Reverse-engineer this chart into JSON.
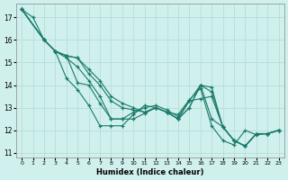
{
  "xlabel": "Humidex (Indice chaleur)",
  "bg_color": "#cff0ec",
  "grid_color": "#b8ddd8",
  "line_color": "#1a7a6a",
  "xlim": [
    -0.5,
    23.5
  ],
  "ylim": [
    10.8,
    17.6
  ],
  "yticks": [
    11,
    12,
    13,
    14,
    15,
    16,
    17
  ],
  "xticks": [
    0,
    1,
    2,
    3,
    4,
    5,
    6,
    7,
    8,
    9,
    10,
    11,
    12,
    13,
    14,
    15,
    16,
    17,
    18,
    19,
    20,
    21,
    22,
    23
  ],
  "series": [
    {
      "x": [
        0,
        1,
        2,
        3,
        4,
        5,
        6,
        7,
        8,
        9,
        10,
        11,
        12,
        13,
        14,
        15,
        16,
        17,
        18,
        19,
        20,
        21,
        22,
        23
      ],
      "y": [
        17.35,
        17.0,
        16.0,
        15.5,
        14.3,
        13.8,
        13.1,
        12.2,
        12.2,
        12.2,
        12.7,
        13.1,
        13.0,
        12.8,
        12.7,
        13.35,
        13.85,
        12.2,
        11.55,
        11.35,
        12.0,
        11.8,
        11.85,
        12.0
      ]
    },
    {
      "x": [
        0,
        2,
        3,
        4,
        5,
        6,
        7,
        8,
        9,
        10,
        11,
        12,
        13,
        14,
        15,
        16,
        17,
        18,
        19,
        20,
        21,
        22,
        23
      ],
      "y": [
        17.35,
        16.0,
        15.5,
        15.2,
        14.8,
        14.2,
        13.5,
        12.5,
        12.5,
        12.8,
        13.0,
        13.1,
        12.9,
        12.6,
        13.3,
        13.4,
        13.5,
        12.15,
        11.55,
        11.3,
        11.85,
        11.85,
        12.0
      ]
    },
    {
      "x": [
        0,
        2,
        3,
        4,
        5,
        6,
        7,
        8,
        9,
        10,
        11,
        12,
        13,
        14,
        15,
        16,
        17,
        18,
        19,
        20,
        21,
        22,
        23
      ],
      "y": [
        17.35,
        16.0,
        15.5,
        15.3,
        14.1,
        14.0,
        13.2,
        12.5,
        12.5,
        12.5,
        12.75,
        13.0,
        12.8,
        12.5,
        13.0,
        14.0,
        13.7,
        12.15,
        11.55,
        11.3,
        11.85,
        11.85,
        12.0
      ]
    },
    {
      "x": [
        0,
        2,
        3,
        4,
        5,
        6,
        7,
        8,
        9,
        10,
        11,
        12,
        13,
        14,
        15,
        16,
        17,
        18,
        19,
        20,
        21,
        22,
        23
      ],
      "y": [
        17.35,
        16.0,
        15.5,
        15.3,
        15.2,
        14.5,
        14.0,
        13.3,
        13.0,
        12.9,
        12.8,
        13.0,
        12.8,
        12.5,
        13.0,
        14.0,
        12.5,
        12.15,
        11.55,
        11.3,
        11.85,
        11.85,
        12.0
      ]
    },
    {
      "x": [
        0,
        2,
        3,
        4,
        5,
        6,
        7,
        8,
        9,
        10,
        11,
        12,
        13,
        14,
        15,
        16,
        17,
        18,
        19,
        20,
        21,
        22,
        23
      ],
      "y": [
        17.35,
        16.0,
        15.5,
        15.3,
        15.2,
        14.7,
        14.2,
        13.5,
        13.2,
        13.0,
        12.8,
        13.0,
        12.8,
        12.5,
        13.3,
        14.0,
        13.9,
        12.15,
        11.55,
        11.3,
        11.85,
        11.85,
        12.0
      ]
    }
  ]
}
